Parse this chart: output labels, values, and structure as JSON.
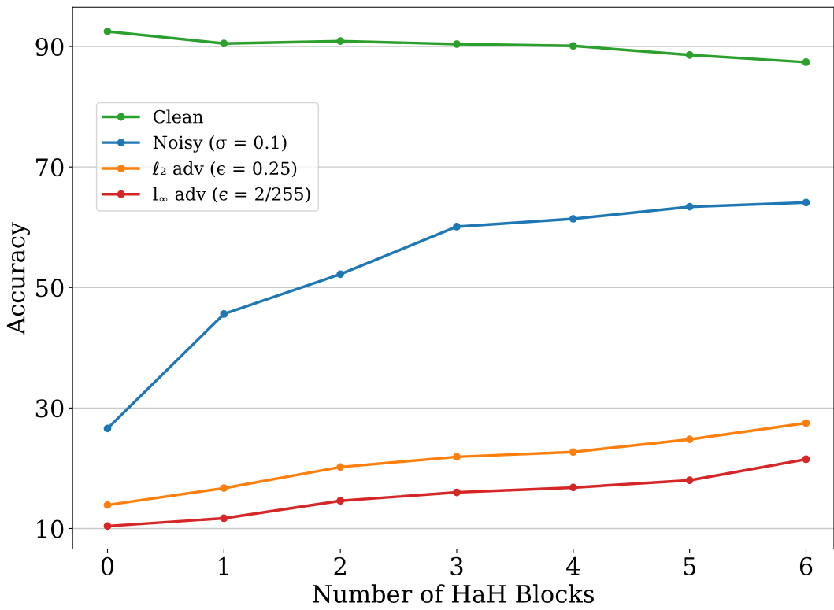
{
  "chart_data": {
    "type": "line",
    "xlabel": "Number of HaH Blocks",
    "ylabel": "Accuracy",
    "x": [
      0,
      1,
      2,
      3,
      4,
      5,
      6
    ],
    "series": [
      {
        "name": "Clean",
        "color": "#2ca02c",
        "values": [
          92.5,
          90.5,
          90.9,
          90.4,
          90.1,
          88.6,
          87.4
        ]
      },
      {
        "name": "Noisy (σ = 0.1)",
        "color": "#1f77b4",
        "values": [
          26.6,
          45.6,
          52.2,
          60.1,
          61.4,
          63.4,
          64.1
        ]
      },
      {
        "name": "ℓ₂ adv (ϵ = 0.25)",
        "color": "#ff7f0e",
        "values": [
          13.9,
          16.7,
          20.2,
          21.9,
          22.7,
          24.8,
          27.5
        ]
      },
      {
        "name": "l$_{∞}$ adv (ϵ = 2/255)",
        "color": "#d62728",
        "values": [
          10.4,
          11.7,
          14.6,
          16.0,
          16.8,
          18.0,
          21.5
        ]
      }
    ],
    "xlim": [
      -0.3,
      6.24
    ],
    "ylim": [
      6.6,
      96.5
    ],
    "xticks": [
      0,
      1,
      2,
      3,
      4,
      5,
      6
    ],
    "yticks": [
      10,
      30,
      50,
      70,
      90
    ],
    "grid": "y",
    "legend": "upper left",
    "marker": "circle",
    "line_style": "solid"
  }
}
